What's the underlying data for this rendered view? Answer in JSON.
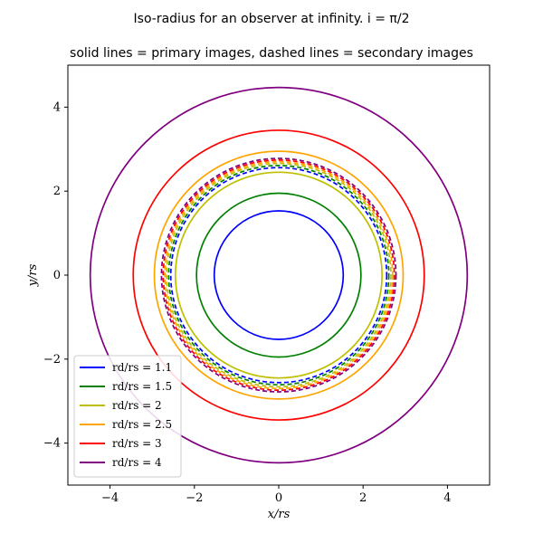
{
  "chart_data": {
    "type": "line",
    "title": "Iso-radius for an observer at infinity. i = π/2",
    "subtitle": "solid lines = primary images, dashed lines = secondary images",
    "xlabel": "x/rs",
    "ylabel": "y/rs",
    "xlim": [
      -5,
      5
    ],
    "ylim": [
      -5,
      5
    ],
    "xticks": [
      -4,
      -2,
      0,
      2,
      4
    ],
    "yticks": [
      -4,
      -2,
      0,
      2,
      4
    ],
    "xtick_labels": [
      "−4",
      "−2",
      "0",
      "2",
      "4"
    ],
    "ytick_labels": [
      "−4",
      "−2",
      "0",
      "2",
      "4"
    ],
    "grid": false,
    "legend_position": "lower-left",
    "series": [
      {
        "name": "rd/rs = 1.1",
        "color": "#0000ff",
        "primary_radius": 1.53,
        "secondary_radius": 2.56
      },
      {
        "name": "rd/rs = 1.5",
        "color": "#008000",
        "primary_radius": 1.95,
        "secondary_radius": 2.61
      },
      {
        "name": "rd/rs = 2",
        "color": "#bfbf00",
        "primary_radius": 2.45,
        "secondary_radius": 2.66
      },
      {
        "name": "rd/rs = 2.5",
        "color": "#ffa500",
        "primary_radius": 2.95,
        "secondary_radius": 2.7
      },
      {
        "name": "rd/rs = 3",
        "color": "#ff0000",
        "primary_radius": 3.45,
        "secondary_radius": 2.74
      },
      {
        "name": "rd/rs = 4",
        "color": "#800080",
        "primary_radius": 4.47,
        "secondary_radius": 2.78
      }
    ]
  }
}
